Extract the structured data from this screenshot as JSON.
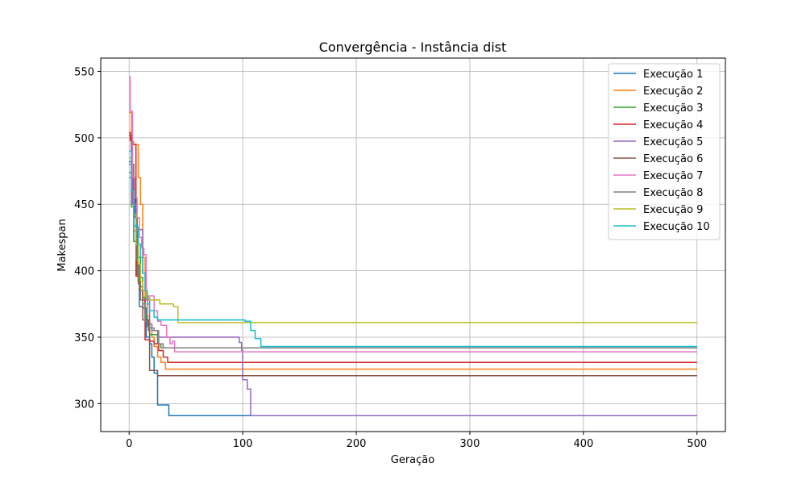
{
  "chart_data": {
    "type": "line",
    "title": "Convergência - Instância dist",
    "xlabel": "Geração",
    "ylabel": "Makespan",
    "xlim": [
      -25,
      525
    ],
    "ylim": [
      279,
      560
    ],
    "xticks": [
      0,
      100,
      200,
      300,
      400,
      500
    ],
    "yticks": [
      300,
      350,
      400,
      450,
      500,
      550
    ],
    "grid": true,
    "legend_position": "top-right",
    "series": [
      {
        "name": "Execução 1",
        "color": "#1f77b4",
        "points": [
          [
            0,
            482
          ],
          [
            2,
            462
          ],
          [
            5,
            440
          ],
          [
            7,
            405
          ],
          [
            9,
            373
          ],
          [
            12,
            372
          ],
          [
            15,
            350
          ],
          [
            18,
            345
          ],
          [
            20,
            335
          ],
          [
            22,
            323
          ],
          [
            25,
            299
          ],
          [
            30,
            299
          ],
          [
            35,
            291
          ],
          [
            500,
            291
          ]
        ]
      },
      {
        "name": "Execução 2",
        "color": "#ff7f0e",
        "points": [
          [
            0,
            519
          ],
          [
            2,
            497
          ],
          [
            4,
            495
          ],
          [
            7,
            495
          ],
          [
            8,
            470
          ],
          [
            10,
            450
          ],
          [
            12,
            410
          ],
          [
            14,
            378
          ],
          [
            16,
            366
          ],
          [
            18,
            360
          ],
          [
            20,
            350
          ],
          [
            22,
            343
          ],
          [
            25,
            335
          ],
          [
            28,
            331
          ],
          [
            32,
            326
          ],
          [
            500,
            326
          ]
        ]
      },
      {
        "name": "Execução 3",
        "color": "#2ca02c",
        "points": [
          [
            0,
            474
          ],
          [
            2,
            448
          ],
          [
            4,
            422
          ],
          [
            6,
            422
          ],
          [
            8,
            410
          ],
          [
            10,
            395
          ],
          [
            12,
            380
          ],
          [
            14,
            365
          ],
          [
            16,
            360
          ],
          [
            18,
            352
          ],
          [
            22,
            352
          ],
          [
            25,
            345
          ],
          [
            28,
            342
          ],
          [
            500,
            342
          ]
        ]
      },
      {
        "name": "Execução 4",
        "color": "#d62728",
        "points": [
          [
            0,
            504
          ],
          [
            1,
            498
          ],
          [
            3,
            495
          ],
          [
            5,
            495
          ],
          [
            6,
            396
          ],
          [
            8,
            392
          ],
          [
            10,
            388
          ],
          [
            12,
            378
          ],
          [
            14,
            348
          ],
          [
            18,
            347
          ],
          [
            22,
            345
          ],
          [
            26,
            340
          ],
          [
            30,
            335
          ],
          [
            34,
            331
          ],
          [
            500,
            331
          ]
        ]
      },
      {
        "name": "Execução 5",
        "color": "#9467bd",
        "points": [
          [
            0,
            470
          ],
          [
            3,
            450
          ],
          [
            6,
            431
          ],
          [
            10,
            431
          ],
          [
            12,
            398
          ],
          [
            15,
            380
          ],
          [
            18,
            360
          ],
          [
            20,
            355
          ],
          [
            25,
            350
          ],
          [
            95,
            350
          ],
          [
            97,
            346
          ],
          [
            99,
            340
          ],
          [
            100,
            318
          ],
          [
            102,
            318
          ],
          [
            104,
            311
          ],
          [
            106,
            311
          ],
          [
            107,
            291
          ],
          [
            500,
            291
          ]
        ]
      },
      {
        "name": "Execução 6",
        "color": "#8c564b",
        "points": [
          [
            0,
            502
          ],
          [
            2,
            480
          ],
          [
            4,
            440
          ],
          [
            6,
            424
          ],
          [
            7,
            397
          ],
          [
            9,
            385
          ],
          [
            12,
            363
          ],
          [
            15,
            363
          ],
          [
            17,
            355
          ],
          [
            18,
            325
          ],
          [
            22,
            325
          ],
          [
            25,
            321
          ],
          [
            500,
            321
          ]
        ]
      },
      {
        "name": "Execução 7",
        "color": "#e377c2",
        "points": [
          [
            0,
            546
          ],
          [
            1,
            520
          ],
          [
            3,
            470
          ],
          [
            5,
            455
          ],
          [
            7,
            440
          ],
          [
            9,
            425
          ],
          [
            11,
            417
          ],
          [
            13,
            412
          ],
          [
            15,
            378
          ],
          [
            17,
            381
          ],
          [
            20,
            381
          ],
          [
            22,
            370
          ],
          [
            25,
            362
          ],
          [
            28,
            359
          ],
          [
            32,
            359
          ],
          [
            33,
            350
          ],
          [
            36,
            345
          ],
          [
            38,
            347
          ],
          [
            40,
            339
          ],
          [
            500,
            339
          ]
        ]
      },
      {
        "name": "Execução 8",
        "color": "#7f7f7f",
        "points": [
          [
            0,
            480
          ],
          [
            2,
            450
          ],
          [
            4,
            430
          ],
          [
            6,
            408
          ],
          [
            8,
            390
          ],
          [
            10,
            378
          ],
          [
            12,
            375
          ],
          [
            14,
            362
          ],
          [
            16,
            358
          ],
          [
            18,
            357
          ],
          [
            22,
            355
          ],
          [
            26,
            345
          ],
          [
            30,
            342
          ],
          [
            500,
            342
          ]
        ]
      },
      {
        "name": "Execução 9",
        "color": "#bcbd22",
        "points": [
          [
            0,
            485
          ],
          [
            2,
            460
          ],
          [
            4,
            442
          ],
          [
            6,
            420
          ],
          [
            8,
            405
          ],
          [
            10,
            392
          ],
          [
            12,
            385
          ],
          [
            15,
            380
          ],
          [
            18,
            378
          ],
          [
            25,
            378
          ],
          [
            27,
            375
          ],
          [
            38,
            375
          ],
          [
            39,
            373
          ],
          [
            42,
            373
          ],
          [
            43,
            361
          ],
          [
            500,
            361
          ]
        ]
      },
      {
        "name": "Execução 10",
        "color": "#17becf",
        "points": [
          [
            0,
            490
          ],
          [
            2,
            460
          ],
          [
            4,
            434
          ],
          [
            6,
            433
          ],
          [
            8,
            420
          ],
          [
            10,
            410
          ],
          [
            12,
            398
          ],
          [
            14,
            385
          ],
          [
            16,
            375
          ],
          [
            18,
            370
          ],
          [
            22,
            365
          ],
          [
            25,
            363
          ],
          [
            100,
            363
          ],
          [
            102,
            362
          ],
          [
            106,
            362
          ],
          [
            107,
            355
          ],
          [
            110,
            355
          ],
          [
            111,
            349
          ],
          [
            114,
            349
          ],
          [
            116,
            343
          ],
          [
            500,
            343
          ]
        ]
      }
    ]
  }
}
